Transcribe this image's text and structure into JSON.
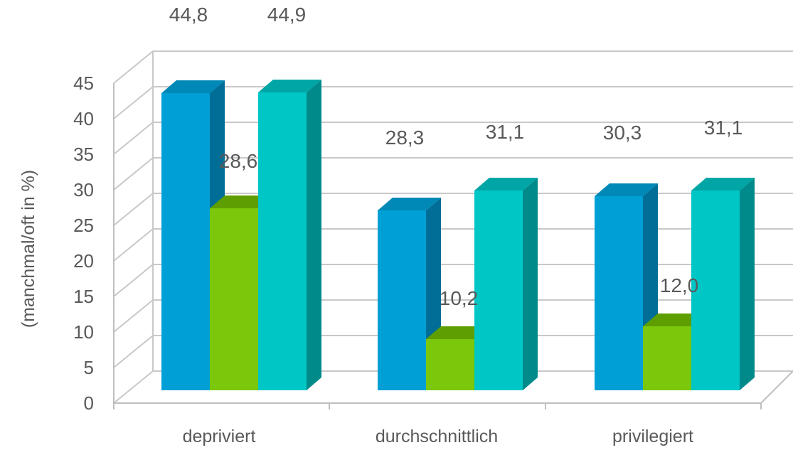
{
  "chart_data": {
    "type": "bar",
    "title": "",
    "xlabel": "",
    "ylabel": "(manchmal/oft in %)",
    "ylim": [
      0,
      45
    ],
    "yticks": [
      0,
      5,
      10,
      15,
      20,
      25,
      30,
      35,
      40,
      45
    ],
    "grid": true,
    "legend": "none",
    "categories": [
      "depriviert",
      "durchschnittlich",
      "privilegiert"
    ],
    "series": [
      {
        "values": [
          44.8,
          28.3,
          30.3
        ],
        "labels": [
          "44,8",
          "28,3",
          "30,3"
        ],
        "color": "#00A0D6",
        "side_color": "#006E96",
        "top_color": "#0088B6"
      },
      {
        "values": [
          28.6,
          10.2,
          12.0
        ],
        "labels": [
          "28,6",
          "10,2",
          "12,0"
        ],
        "color": "#7AC70C",
        "side_color": "#4E8A00",
        "top_color": "#5F9E00"
      },
      {
        "values": [
          44.9,
          31.1,
          31.1
        ],
        "labels": [
          "44,9",
          "31,1",
          "31,1"
        ],
        "color": "#00C6C6",
        "side_color": "#008A8A",
        "top_color": "#00A6A6"
      }
    ]
  }
}
